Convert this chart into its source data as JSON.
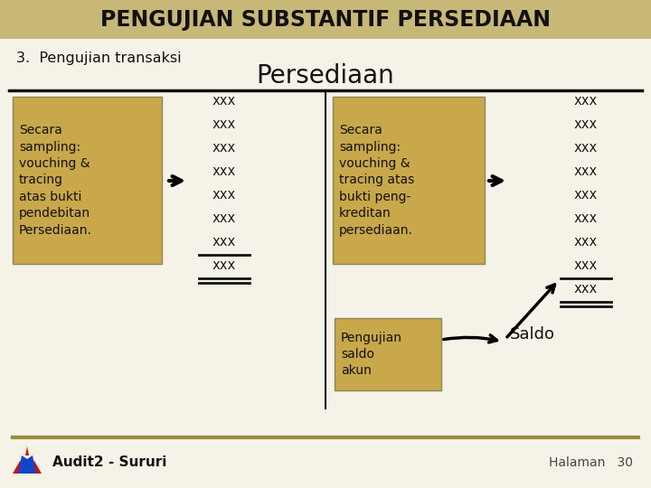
{
  "title": "PENGUJIAN SUBSTANTIF PERSEDIAAN",
  "title_bg": "#c8b878",
  "subtitle1": "3.  Pengujian transaksi",
  "subtitle2": "Persediaan",
  "bg_color": "#f5f2e8",
  "box_color": "#c8a84b",
  "box1_text": "Secara\nsampling:\nvouching &\ntracing\natas bukti\npendebitan\nPersediaan.",
  "box2_text": "Secara\nsampling:\nvouching &\ntracing atas\nbukti peng-\nkreditan\npersediaan.",
  "box3_text": "Pengujian\nsaldo\nakun",
  "saldo_text": "Saldo",
  "footer_left": "Audit2 - Sururi",
  "footer_right": "Halaman   30",
  "divider_color": "#9b8c3a",
  "separator_color": "#111111",
  "title_text_color": "#111111"
}
